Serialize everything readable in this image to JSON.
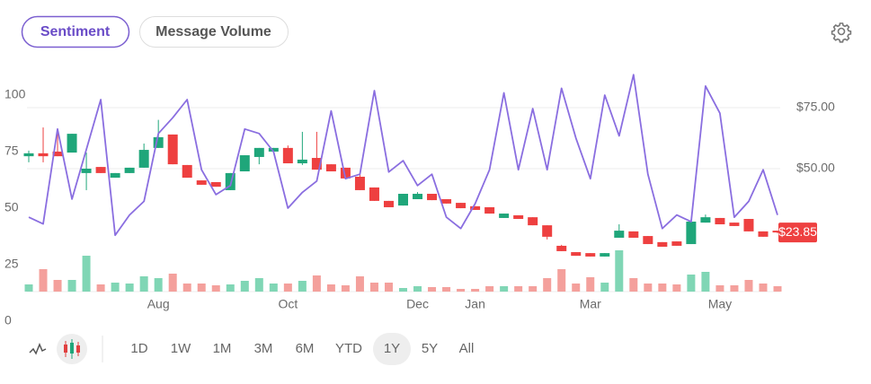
{
  "tabs": [
    "Sentiment",
    "Message Volume"
  ],
  "selected_tab": 0,
  "ranges": [
    "1D",
    "1W",
    "1M",
    "3M",
    "6M",
    "YTD",
    "1Y",
    "5Y",
    "All"
  ],
  "selected_range": 6,
  "chart_data": {
    "type": "candlestick",
    "categories": [
      null,
      null,
      null,
      null,
      null,
      null,
      null,
      null,
      null,
      "Aug",
      null,
      null,
      null,
      null,
      null,
      null,
      null,
      null,
      "Oct",
      null,
      null,
      null,
      null,
      null,
      null,
      null,
      null,
      "Dec",
      null,
      null,
      null,
      "Jan",
      null,
      null,
      null,
      null,
      null,
      null,
      null,
      "Mar",
      null,
      null,
      null,
      null,
      null,
      null,
      null,
      null,
      "May",
      null,
      null,
      null,
      null
    ],
    "open": [
      55.1,
      56.3,
      57.0,
      56.6,
      48.2,
      50.7,
      46.3,
      48.2,
      50.4,
      58.5,
      64.0,
      51.5,
      45.2,
      44.5,
      41.2,
      48.9,
      54.8,
      57.0,
      58.5,
      52.2,
      54.4,
      51.8,
      50.4,
      46.7,
      42.3,
      36.8,
      34.9,
      37.5,
      39.7,
      37.5,
      36.0,
      34.6,
      34.2,
      29.8,
      30.9,
      30.1,
      26.8,
      18.4,
      15.8,
      15.4,
      14.0,
      21.7,
      24.3,
      22.4,
      19.9,
      20.2,
      19.1,
      27.9,
      29.8,
      27.9,
      29.4,
      24.3,
      24.6
    ],
    "high": [
      57.4,
      66.9,
      65.8,
      64.3,
      56.6,
      50.7,
      48.2,
      50.4,
      60.3,
      70.0,
      64.0,
      51.5,
      45.2,
      44.5,
      48.2,
      55.5,
      58.5,
      58.5,
      59.5,
      65.1,
      65.1,
      51.8,
      50.4,
      48.2,
      42.3,
      36.8,
      39.7,
      40.4,
      39.7,
      37.5,
      36.0,
      34.6,
      34.2,
      31.6,
      30.9,
      30.1,
      26.8,
      18.8,
      15.8,
      15.4,
      15.4,
      27.2,
      24.3,
      22.4,
      19.9,
      20.2,
      28.3,
      31.2,
      29.8,
      27.9,
      29.4,
      24.3,
      24.6
    ],
    "low": [
      52.6,
      52.6,
      55.1,
      56.6,
      41.2,
      48.2,
      46.3,
      48.2,
      50.4,
      58.5,
      51.8,
      46.3,
      43.4,
      42.6,
      41.2,
      48.9,
      51.8,
      57.0,
      52.2,
      51.5,
      49.6,
      48.9,
      46.0,
      41.2,
      36.8,
      34.2,
      34.9,
      37.5,
      37.1,
      35.7,
      33.8,
      33.1,
      31.6,
      29.8,
      29.4,
      26.8,
      21.0,
      16.2,
      14.3,
      14.0,
      14.0,
      21.7,
      21.7,
      19.1,
      18.0,
      18.4,
      19.1,
      27.9,
      27.2,
      26.5,
      24.3,
      22.1,
      23.5
    ],
    "close": [
      56.3,
      55.1,
      55.1,
      64.3,
      50.0,
      48.2,
      48.2,
      50.4,
      57.7,
      62.9,
      51.8,
      46.3,
      43.4,
      42.6,
      48.2,
      55.5,
      58.5,
      58.5,
      52.2,
      53.7,
      49.6,
      48.9,
      46.0,
      41.2,
      36.8,
      34.2,
      39.7,
      39.7,
      37.1,
      35.7,
      33.8,
      33.1,
      31.6,
      31.6,
      29.4,
      26.8,
      22.1,
      16.2,
      14.3,
      14.0,
      15.4,
      24.6,
      21.7,
      19.1,
      18.0,
      18.4,
      28.3,
      30.1,
      27.2,
      26.5,
      24.3,
      22.1,
      23.85
    ],
    "volume": [
      8,
      25,
      13,
      13,
      40,
      8,
      10,
      9,
      17,
      15,
      20,
      9,
      9,
      7,
      8,
      12,
      15,
      9,
      9,
      12,
      18,
      8,
      7,
      17,
      10,
      10,
      4,
      6,
      5,
      5,
      3,
      3,
      6,
      6,
      6,
      6,
      15,
      25,
      9,
      16,
      10,
      46,
      15,
      9,
      9,
      8,
      19,
      22,
      7,
      7,
      13,
      9,
      6
    ],
    "sentiment": [
      46,
      43,
      85,
      54,
      76,
      98,
      38,
      47,
      53,
      83,
      90,
      98,
      67,
      56,
      60,
      85,
      83,
      75,
      50,
      57,
      62,
      93,
      63,
      65,
      102,
      66,
      71,
      60,
      65,
      46,
      41,
      52,
      67,
      101,
      67,
      94,
      67,
      103,
      81,
      63,
      100,
      82,
      109,
      65,
      41,
      47,
      44,
      104,
      92,
      46,
      53,
      67,
      47
    ],
    "up_color": "#1fa67a",
    "down_color": "#ee4040",
    "volume_up_color": "#80d6b5",
    "volume_down_color": "#f4a09c",
    "sentiment_color": "#8a6ee0",
    "ylim": [
      0,
      100
    ],
    "yticks": [
      0,
      25,
      50,
      75,
      100
    ],
    "y2lim": [
      0,
      75
    ],
    "y2ticks": [
      {
        "value": 50,
        "label": "$50.00"
      },
      {
        "value": 75,
        "label": "$75.00"
      }
    ],
    "volume_lim": [
      0,
      100
    ],
    "price_tag": {
      "value": 23.85,
      "label": "$23.85"
    },
    "grid": true
  }
}
